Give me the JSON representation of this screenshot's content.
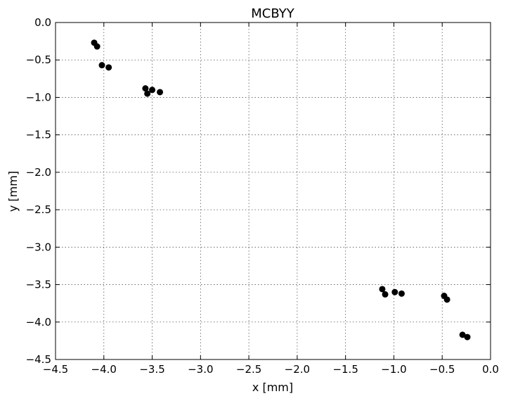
{
  "chart_data": {
    "type": "scatter",
    "title": "MCBYY",
    "xlabel": "x [mm]",
    "ylabel": "y [mm]",
    "xlim": [
      -4.5,
      0.0
    ],
    "ylim": [
      -4.5,
      0.0
    ],
    "xticks": [
      -4.5,
      -4.0,
      -3.5,
      -3.0,
      -2.5,
      -2.0,
      -1.5,
      -1.0,
      -0.5,
      0.0
    ],
    "yticks": [
      0.0,
      -0.5,
      -1.0,
      -1.5,
      -2.0,
      -2.5,
      -3.0,
      -3.5,
      -4.0,
      -4.5
    ],
    "xtick_labels": [
      "−4.5",
      "−4.0",
      "−3.5",
      "−3.0",
      "−2.5",
      "−2.0",
      "−1.5",
      "−1.0",
      "−0.5",
      "0.0"
    ],
    "ytick_labels": [
      "0.0",
      "−0.5",
      "−1.0",
      "−1.5",
      "−2.0",
      "−2.5",
      "−3.0",
      "−3.5",
      "−4.0",
      "−4.5"
    ],
    "grid": true,
    "marker_color": "#000000",
    "points": [
      {
        "x": -4.1,
        "y": -0.27
      },
      {
        "x": -4.07,
        "y": -0.32
      },
      {
        "x": -4.02,
        "y": -0.57
      },
      {
        "x": -3.95,
        "y": -0.6
      },
      {
        "x": -3.57,
        "y": -0.88
      },
      {
        "x": -3.55,
        "y": -0.95
      },
      {
        "x": -3.5,
        "y": -0.9
      },
      {
        "x": -3.42,
        "y": -0.93
      },
      {
        "x": -1.12,
        "y": -3.56
      },
      {
        "x": -1.09,
        "y": -3.63
      },
      {
        "x": -0.99,
        "y": -3.6
      },
      {
        "x": -0.92,
        "y": -3.62
      },
      {
        "x": -0.48,
        "y": -3.65
      },
      {
        "x": -0.45,
        "y": -3.7
      },
      {
        "x": -0.29,
        "y": -4.17
      },
      {
        "x": -0.24,
        "y": -4.2
      }
    ]
  }
}
